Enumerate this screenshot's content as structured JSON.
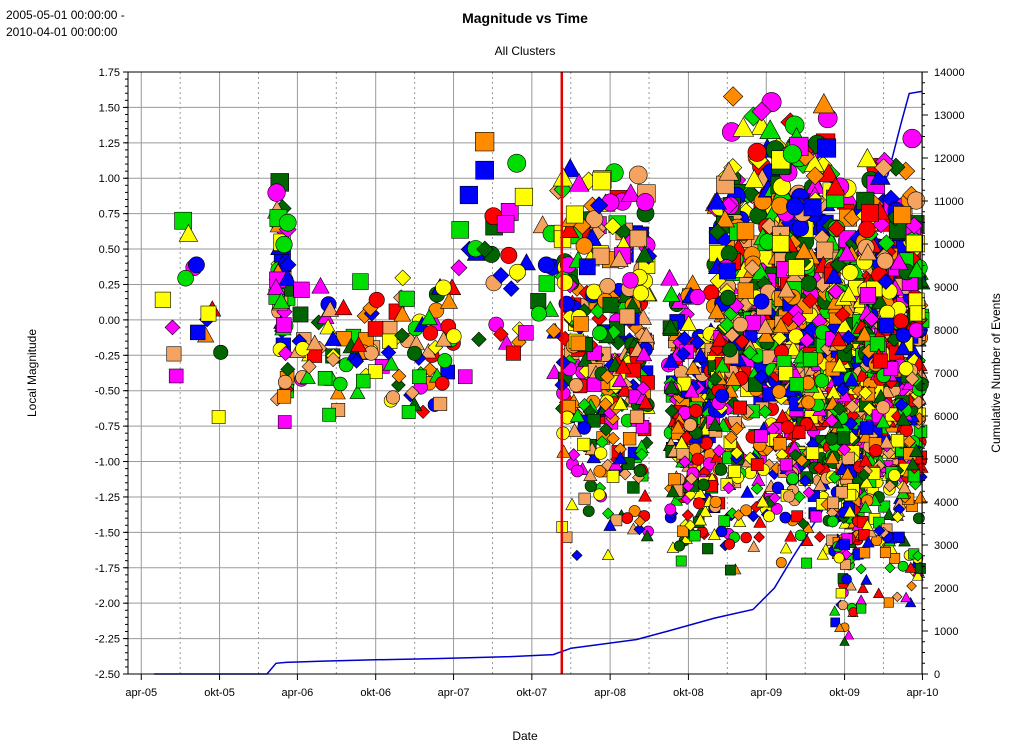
{
  "header": {
    "range_start": "2005-05-01 00:00:00 -",
    "range_end": "2010-04-01 00:00:00"
  },
  "chart_data": {
    "type": "scatter",
    "title": "Magnitude vs Time",
    "subtitle": "All Clusters",
    "xlabel": "Date",
    "ylabel": "Local Magnitude",
    "y2label": "Cumulative Number of Events",
    "x_range": [
      "2005-03-01",
      "2010-03-31"
    ],
    "ylim": [
      -2.5,
      1.75
    ],
    "y2lim": [
      0,
      14000
    ],
    "x_ticks": [
      "apr-05",
      "okt-05",
      "apr-06",
      "okt-06",
      "apr-07",
      "okt-07",
      "apr-08",
      "okt-08",
      "apr-09",
      "okt-09",
      "apr-10"
    ],
    "y_ticks": [
      "-2.50",
      "-2.25",
      "-2.00",
      "-1.75",
      "-1.50",
      "-1.25",
      "-1.00",
      "-0.75",
      "-0.50",
      "-0.25",
      "0.00",
      "0.25",
      "0.50",
      "0.75",
      "1.00",
      "1.25",
      "1.50",
      "1.75"
    ],
    "y2_ticks": [
      "0",
      "1000",
      "2000",
      "3000",
      "4000",
      "5000",
      "6000",
      "7000",
      "8000",
      "9000",
      "10000",
      "11000",
      "12000",
      "13000",
      "14000"
    ],
    "grid": true,
    "marker_line_date": "2007-12-10",
    "marker_line_color": "#e00000",
    "cumulative_color": "#0000cc",
    "marker_colors": [
      "#f4a460",
      "#ff0000",
      "#ffff00",
      "#00dd00",
      "#006400",
      "#0000ff",
      "#ff00ff",
      "#ff8c00"
    ],
    "marker_shapes": [
      "circle",
      "square",
      "triangle",
      "diamond"
    ],
    "cumulative_series": [
      {
        "date": "2005-05-01",
        "count": 0
      },
      {
        "date": "2006-01-20",
        "count": 0
      },
      {
        "date": "2006-02-10",
        "count": 250
      },
      {
        "date": "2006-03-05",
        "count": 270
      },
      {
        "date": "2006-06-01",
        "count": 300
      },
      {
        "date": "2006-10-01",
        "count": 330
      },
      {
        "date": "2007-03-01",
        "count": 360
      },
      {
        "date": "2007-08-01",
        "count": 400
      },
      {
        "date": "2007-11-20",
        "count": 450
      },
      {
        "date": "2008-01-01",
        "count": 600
      },
      {
        "date": "2008-06-01",
        "count": 800
      },
      {
        "date": "2008-08-15",
        "count": 1000
      },
      {
        "date": "2008-12-01",
        "count": 1300
      },
      {
        "date": "2009-03-01",
        "count": 1500
      },
      {
        "date": "2009-04-20",
        "count": 2000
      },
      {
        "date": "2009-06-01",
        "count": 2700
      },
      {
        "date": "2009-08-10",
        "count": 3800
      },
      {
        "date": "2009-09-10",
        "count": 6000
      },
      {
        "date": "2009-10-10",
        "count": 9000
      },
      {
        "date": "2009-11-10",
        "count": 10500
      },
      {
        "date": "2009-12-10",
        "count": 11200
      },
      {
        "date": "2010-01-10",
        "count": 11600
      },
      {
        "date": "2010-02-10",
        "count": 12800
      },
      {
        "date": "2010-03-01",
        "count": 13500
      },
      {
        "date": "2010-03-31",
        "count": 13550
      }
    ],
    "event_clusters": [
      {
        "date_from": "2005-05-01",
        "date_to": "2005-11-01",
        "mag_min": -1.0,
        "mag_max": 0.9,
        "count": 16
      },
      {
        "date_from": "2006-02-10",
        "date_to": "2006-03-10",
        "mag_min": -0.8,
        "mag_max": 1.1,
        "count": 55
      },
      {
        "date_from": "2006-04-01",
        "date_to": "2007-04-01",
        "mag_min": -0.8,
        "mag_max": 0.4,
        "count": 110
      },
      {
        "date_from": "2007-04-01",
        "date_to": "2007-12-10",
        "mag_min": -0.75,
        "mag_max": 1.35,
        "count": 45
      },
      {
        "date_from": "2007-12-10",
        "date_to": "2008-07-01",
        "mag_min": -1.75,
        "mag_max": 1.2,
        "count": 330
      },
      {
        "date_from": "2008-08-15",
        "date_to": "2008-12-01",
        "mag_min": -1.8,
        "mag_max": 0.4,
        "count": 240
      },
      {
        "date_from": "2008-12-01",
        "date_to": "2009-05-01",
        "mag_min": -1.9,
        "mag_max": 1.65,
        "count": 420
      },
      {
        "date_from": "2009-05-01",
        "date_to": "2009-09-01",
        "mag_min": -1.85,
        "mag_max": 1.55,
        "count": 460
      },
      {
        "date_from": "2009-09-01",
        "date_to": "2009-11-15",
        "mag_min": -2.4,
        "mag_max": 1.2,
        "count": 420
      },
      {
        "date_from": "2009-11-15",
        "date_to": "2010-03-31",
        "mag_min": -2.1,
        "mag_max": 1.3,
        "count": 560
      }
    ]
  }
}
